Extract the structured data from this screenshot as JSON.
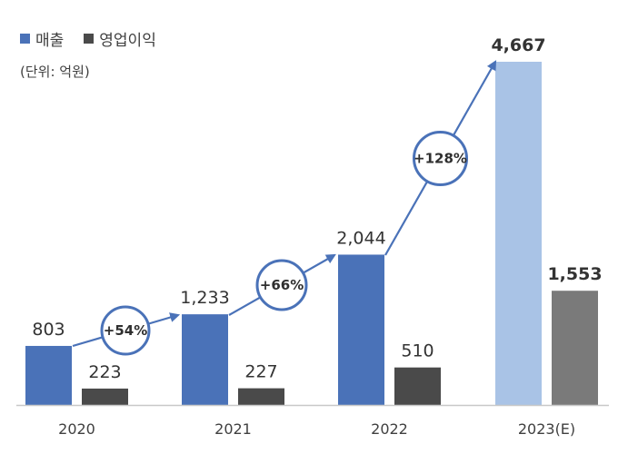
{
  "colors": {
    "revenue": "#4a72b8",
    "revenue_estimate": "#a9c3e6",
    "operating_profit": "#4a4a4a",
    "operating_profit_estimate": "#7a7a7a",
    "arrow": "#4a72b8",
    "axis": "#c8c8c8"
  },
  "legend": {
    "revenue": "매출",
    "operating_profit": "영업이익"
  },
  "unit_label": "(단위: 억원)",
  "chart_data": {
    "type": "bar",
    "categories": [
      "2020",
      "2021",
      "2022",
      "2023(E)"
    ],
    "series": [
      {
        "name": "매출",
        "values": [
          803,
          1233,
          2044,
          4667
        ],
        "labels": [
          "803",
          "1,233",
          "2,044",
          "4,667"
        ]
      },
      {
        "name": "영업이익",
        "values": [
          223,
          227,
          510,
          1553
        ],
        "labels": [
          "223",
          "227",
          "510",
          "1,553"
        ]
      }
    ],
    "ylim": [
      0,
      4667
    ],
    "growth_labels": [
      "+54%",
      "+66%",
      "+128%"
    ],
    "estimate_category_index": 3,
    "grid": false,
    "legend_position": "top-left"
  }
}
